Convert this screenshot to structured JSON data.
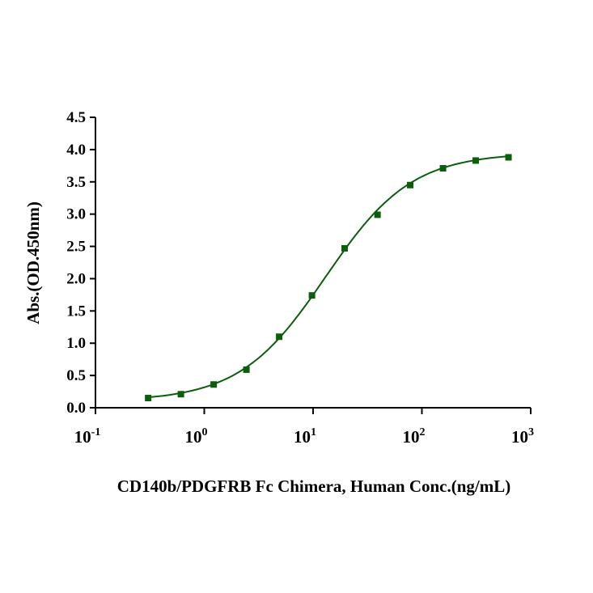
{
  "chart_data": {
    "type": "scatter",
    "title": "",
    "xlabel": "CD140b/PDGFRB Fc Chimera, Human Conc.(ng/mL)",
    "ylabel": "Abs.(OD.450nm)",
    "xscale": "log",
    "xlim": [
      0.1,
      1000
    ],
    "ylim": [
      0,
      4.5
    ],
    "grid": false,
    "x_ticks": [
      {
        "base": "10",
        "exp": "-1",
        "value": 0.1
      },
      {
        "base": "10",
        "exp": "0",
        "value": 1
      },
      {
        "base": "10",
        "exp": "1",
        "value": 10
      },
      {
        "base": "10",
        "exp": "2",
        "value": 100
      },
      {
        "base": "10",
        "exp": "3",
        "value": 1000
      }
    ],
    "y_ticks": [
      "0.0",
      "0.5",
      "1.0",
      "1.5",
      "2.0",
      "2.5",
      "3.0",
      "3.5",
      "4.0",
      "4.5"
    ],
    "series": [
      {
        "name": "CD140b/PDGFRB Fc Chimera, Human",
        "color": "#0b5e0b",
        "x": [
          0.305,
          0.61,
          1.22,
          2.44,
          4.88,
          9.77,
          19.5,
          39.1,
          78.1,
          156.3,
          312.5,
          625
        ],
        "y": [
          0.15,
          0.21,
          0.36,
          0.59,
          1.1,
          1.74,
          2.47,
          2.99,
          3.45,
          3.71,
          3.83,
          3.88
        ],
        "fit": {
          "model": "4PL",
          "bottom": 0.1,
          "top": 3.95,
          "ec50": 13,
          "hill": 1.1
        }
      }
    ]
  }
}
